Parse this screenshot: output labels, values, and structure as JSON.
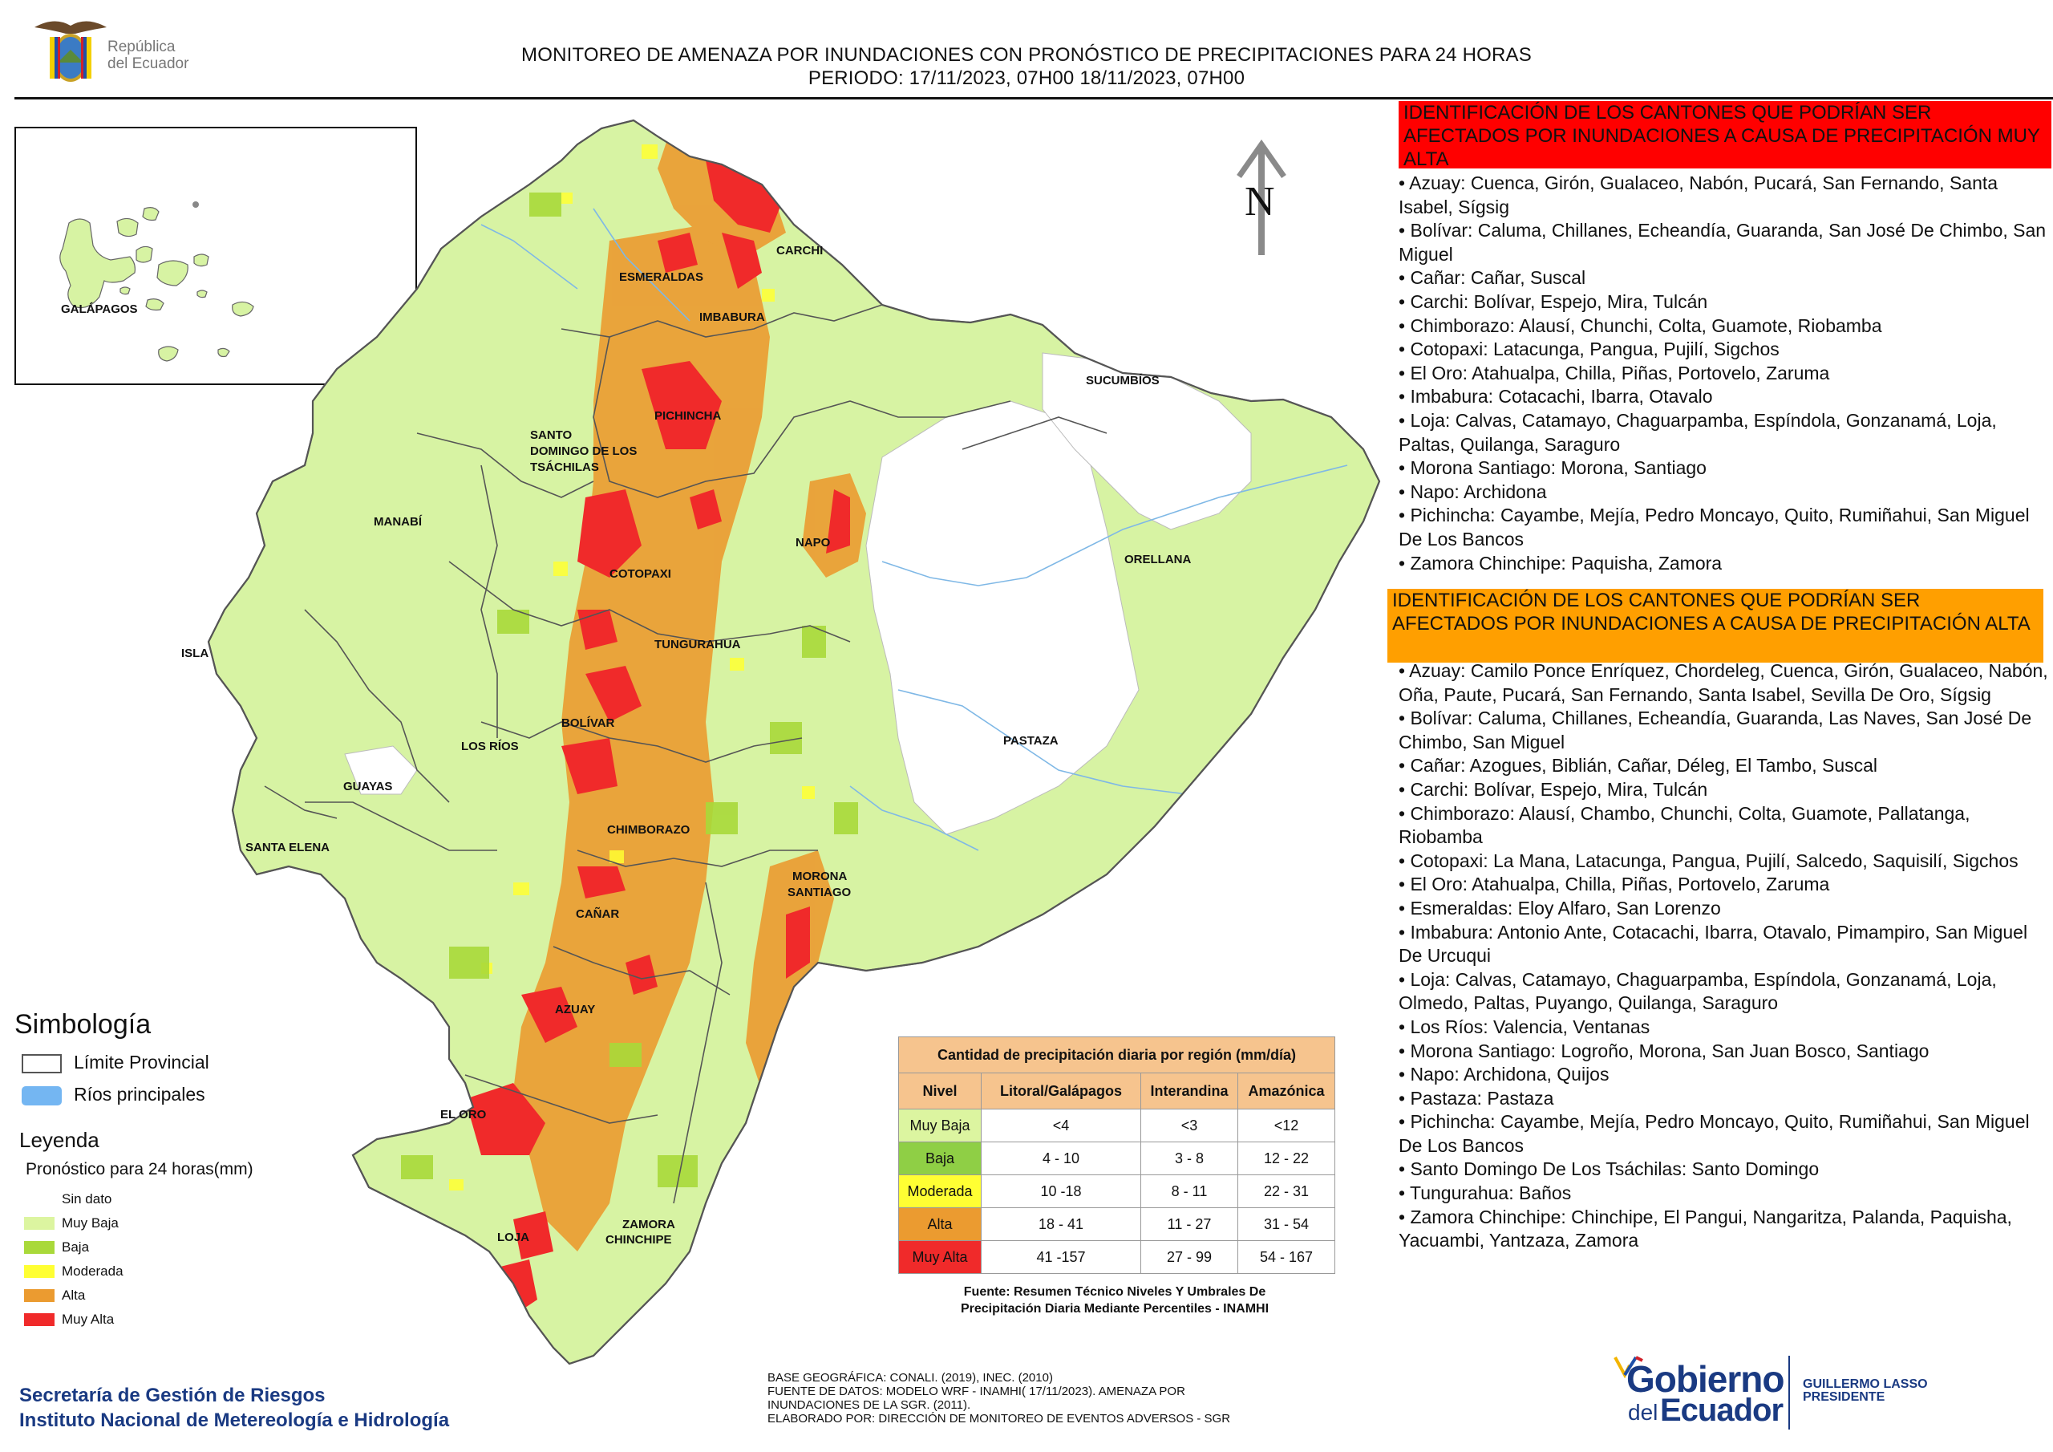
{
  "header": {
    "title_line1": "MONITOREO DE AMENAZA POR INUNDACIONES  CON PRONÓSTICO DE  PRECIPITACIONES PARA 24 HORAS",
    "title_line2": "PERIODO: 17/11/2023, 07H00 18/11/2023, 07H00",
    "logo_text_line1": "República",
    "logo_text_line2": "del Ecuador"
  },
  "map": {
    "north_label": "N",
    "inset_label": "GALÁPAGOS",
    "province_labels": [
      "CARCHI",
      "ESMERALDAS",
      "IMBABURA",
      "SUCUMBÍOS",
      "PICHINCHA",
      "SANTO",
      "DOMINGO DE LOS",
      "TSÁCHILAS",
      "MANABÍ",
      "NAPO",
      "ORELLANA",
      "COTOPAXI",
      "ISLA",
      "TUNGURAHUA",
      "BOLÍVAR",
      "LOS RÍOS",
      "PASTAZA",
      "GUAYAS",
      "CHIMBORAZO",
      "SANTA ELENA",
      "MORONA",
      "SANTIAGO",
      "CAÑAR",
      "AZUAY",
      "EL ORO",
      "ZAMORA",
      "CHINCHIPE",
      "LOJA"
    ]
  },
  "legend": {
    "simbologia_title": "Simbología",
    "limite_label": "Límite Provincial",
    "rios_label": "Ríos principales",
    "leyenda_title": "Leyenda",
    "pronostico_label": "Pronóstico para 24 horas(mm)",
    "items": [
      {
        "label": "Sin dato",
        "color": "#ffffff"
      },
      {
        "label": "Muy Baja",
        "color": "#dcf5a0"
      },
      {
        "label": "Baja",
        "color": "#a9d93a"
      },
      {
        "label": "Moderada",
        "color": "#ffff33"
      },
      {
        "label": "Alta",
        "color": "#eb9b30"
      },
      {
        "label": "Muy Alta",
        "color": "#f02a2a"
      }
    ]
  },
  "table": {
    "title": "Cantidad de precipitación diaria por región (mm/día)",
    "headers": [
      "Nivel",
      "Litoral/Galápagos",
      "Interandina",
      "Amazónica"
    ],
    "rows": [
      {
        "nivel": "Muy Baja",
        "color": "#dcf5a0",
        "litoral": "<4",
        "interandina": "<3",
        "amazonica": "<12"
      },
      {
        "nivel": "Baja",
        "color": "#8fcf45",
        "litoral": "4 - 10",
        "interandina": "3 - 8",
        "amazonica": "12 - 22"
      },
      {
        "nivel": "Moderada",
        "color": "#ffff33",
        "litoral": "10 -18",
        "interandina": "8 - 11",
        "amazonica": "22 - 31"
      },
      {
        "nivel": "Alta",
        "color": "#eb9b30",
        "litoral": "18 - 41",
        "interandina": "11 - 27",
        "amazonica": "31 - 54"
      },
      {
        "nivel": "Muy Alta",
        "color": "#f02a2a",
        "litoral": "41 -157",
        "interandina": "27 - 99",
        "amazonica": "54 - 167"
      }
    ],
    "source_line1": "Fuente: Resumen Técnico Niveles Y Umbrales De",
    "source_line2": "Precipitación Diaria Mediante Percentiles - INAMHI"
  },
  "muy_alta": {
    "heading": "IDENTIFICACIÓN DE LOS CANTONES QUE PODRÍAN SER AFECTADOS POR INUNDACIONES  A CAUSA DE PRECIPITACIÓN MUY ALTA",
    "items": [
      "• Azuay: Cuenca, Girón, Gualaceo, Nabón, Pucará, San Fernando, Santa Isabel, Sígsig",
      "• Bolívar: Caluma, Chillanes, Echeandía, Guaranda, San José De Chimbo, San Miguel",
      "• Cañar: Cañar, Suscal",
      "• Carchi: Bolívar, Espejo, Mira, Tulcán",
      "• Chimborazo: Alausí, Chunchi, Colta, Guamote, Riobamba",
      "• Cotopaxi: Latacunga, Pangua, Pujilí, Sigchos",
      "• El Oro: Atahualpa, Chilla, Piñas, Portovelo, Zaruma",
      "• Imbabura: Cotacachi, Ibarra, Otavalo",
      "• Loja: Calvas, Catamayo, Chaguarpamba, Espíndola, Gonzanamá, Loja, Paltas, Quilanga, Saraguro",
      "• Morona Santiago: Morona, Santiago",
      "• Napo: Archidona",
      "• Pichincha: Cayambe, Mejía, Pedro Moncayo, Quito, Rumiñahui, San Miguel De Los Bancos",
      "• Zamora Chinchipe: Paquisha, Zamora"
    ]
  },
  "alta": {
    "heading": "IDENTIFICACIÓN DE LOS CANTONES QUE  PODRÍAN SER AFECTADOS POR INUNDACIONES  A CAUSA DE PRECIPITACIÓN ALTA",
    "items": [
      "• Azuay: Camilo Ponce Enríquez, Chordeleg, Cuenca, Girón, Gualaceo, Nabón, Oña, Paute, Pucará, San Fernando, Santa Isabel, Sevilla De Oro, Sígsig",
      "• Bolívar: Caluma, Chillanes, Echeandía, Guaranda, Las Naves, San José De Chimbo, San Miguel",
      "• Cañar: Azogues, Biblián, Cañar, Déleg, El Tambo, Suscal",
      "• Carchi: Bolívar, Espejo, Mira, Tulcán",
      "• Chimborazo: Alausí, Chambo, Chunchi, Colta, Guamote, Pallatanga, Riobamba",
      "• Cotopaxi: La Mana, Latacunga, Pangua, Pujilí, Salcedo, Saquisilí, Sigchos",
      "• El Oro: Atahualpa, Chilla, Piñas, Portovelo, Zaruma",
      "• Esmeraldas: Eloy Alfaro, San Lorenzo",
      "• Imbabura: Antonio Ante, Cotacachi, Ibarra, Otavalo, Pimampiro, San Miguel De Urcuqui",
      "• Loja: Calvas, Catamayo, Chaguarpamba, Espíndola, Gonzanamá, Loja, Olmedo, Paltas, Puyango, Quilanga, Saraguro",
      "• Los Ríos: Valencia, Ventanas",
      "• Morona Santiago: Logroño, Morona, San Juan Bosco, Santiago",
      "• Napo: Archidona, Quijos",
      "• Pastaza: Pastaza",
      "• Pichincha: Cayambe, Mejía, Pedro Moncayo, Quito, Rumiñahui, San Miguel De Los Bancos",
      "• Santo Domingo De Los Tsáchilas: Santo Domingo",
      "• Tungurahua: Baños",
      "• Zamora Chinchipe: Chinchipe, El Pangui, Nangaritza, Palanda, Paquisha, Yacuambi, Yantzaza, Zamora"
    ]
  },
  "footer": {
    "org_line1": "Secretaría de Gestión de Riesgos",
    "org_line2": "Instituto Nacional de Metereología e Hidrología",
    "base_line1": "BASE GEOGRÁFICA: CONALI. (2019), INEC. (2010)",
    "base_line2": "FUENTE DE DATOS: MODELO WRF - INAMHI( 17/11/2023).  AMENAZA POR",
    "base_line3": "INUNDACIONES DE LA SGR. (2011).",
    "base_line4": "ELABORADO POR: DIRECCIÓN DE MONITOREO DE EVENTOS ADVERSOS - SGR",
    "gov_line1": "Gobierno",
    "gov_line2": "del",
    "gov_line3": "Ecuador",
    "president_line1": "GUILLERMO LASSO",
    "president_line2": "PRESIDENTE"
  }
}
